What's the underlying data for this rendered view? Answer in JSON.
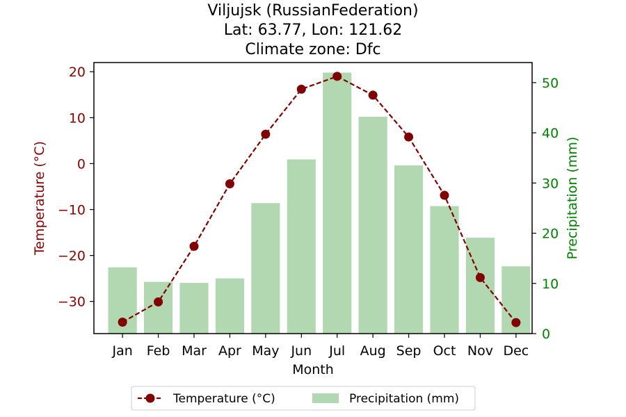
{
  "chart_data": {
    "type": "bar+line",
    "title_lines": [
      "Viljujsk (RussianFederation)",
      "Lat: 63.77, Lon: 121.62",
      "Climate zone: Dfc"
    ],
    "xlabel": "Month",
    "categories": [
      "Jan",
      "Feb",
      "Mar",
      "Apr",
      "May",
      "Jun",
      "Jul",
      "Aug",
      "Sep",
      "Oct",
      "Nov",
      "Dec"
    ],
    "left_axis": {
      "label": "Temperature (°C)",
      "ylim": [
        -37.0,
        22.0
      ],
      "ticks": [
        -30,
        -20,
        -10,
        0,
        10,
        20
      ],
      "tick_labels": [
        "−30",
        "−20",
        "−10",
        "0",
        "10",
        "20"
      ],
      "color": "#8b0000"
    },
    "right_axis": {
      "label": "Precipitation (mm)",
      "ylim": [
        0,
        54
      ],
      "ticks": [
        0,
        10,
        20,
        30,
        40,
        50
      ],
      "tick_labels": [
        "0",
        "10",
        "20",
        "30",
        "40",
        "50"
      ],
      "color": "#008000"
    },
    "series": [
      {
        "name": "Temperature (°C)",
        "kind": "line",
        "axis": "left",
        "color": "#800000",
        "values": [
          -34.5,
          -30.1,
          -18.0,
          -4.4,
          6.4,
          16.2,
          19.0,
          14.9,
          5.8,
          -6.9,
          -24.8,
          -34.6
        ]
      },
      {
        "name": "Precipitation (mm)",
        "kind": "bar",
        "axis": "right",
        "color": "#b2d8b2",
        "values": [
          13.2,
          10.3,
          10.1,
          11.0,
          26.0,
          34.7,
          52.0,
          43.2,
          33.5,
          25.4,
          19.1,
          13.4
        ]
      }
    ],
    "legend": {
      "placement": "bottom-center",
      "entries": [
        "Temperature (°C)",
        "Precipitation (mm)"
      ]
    }
  }
}
